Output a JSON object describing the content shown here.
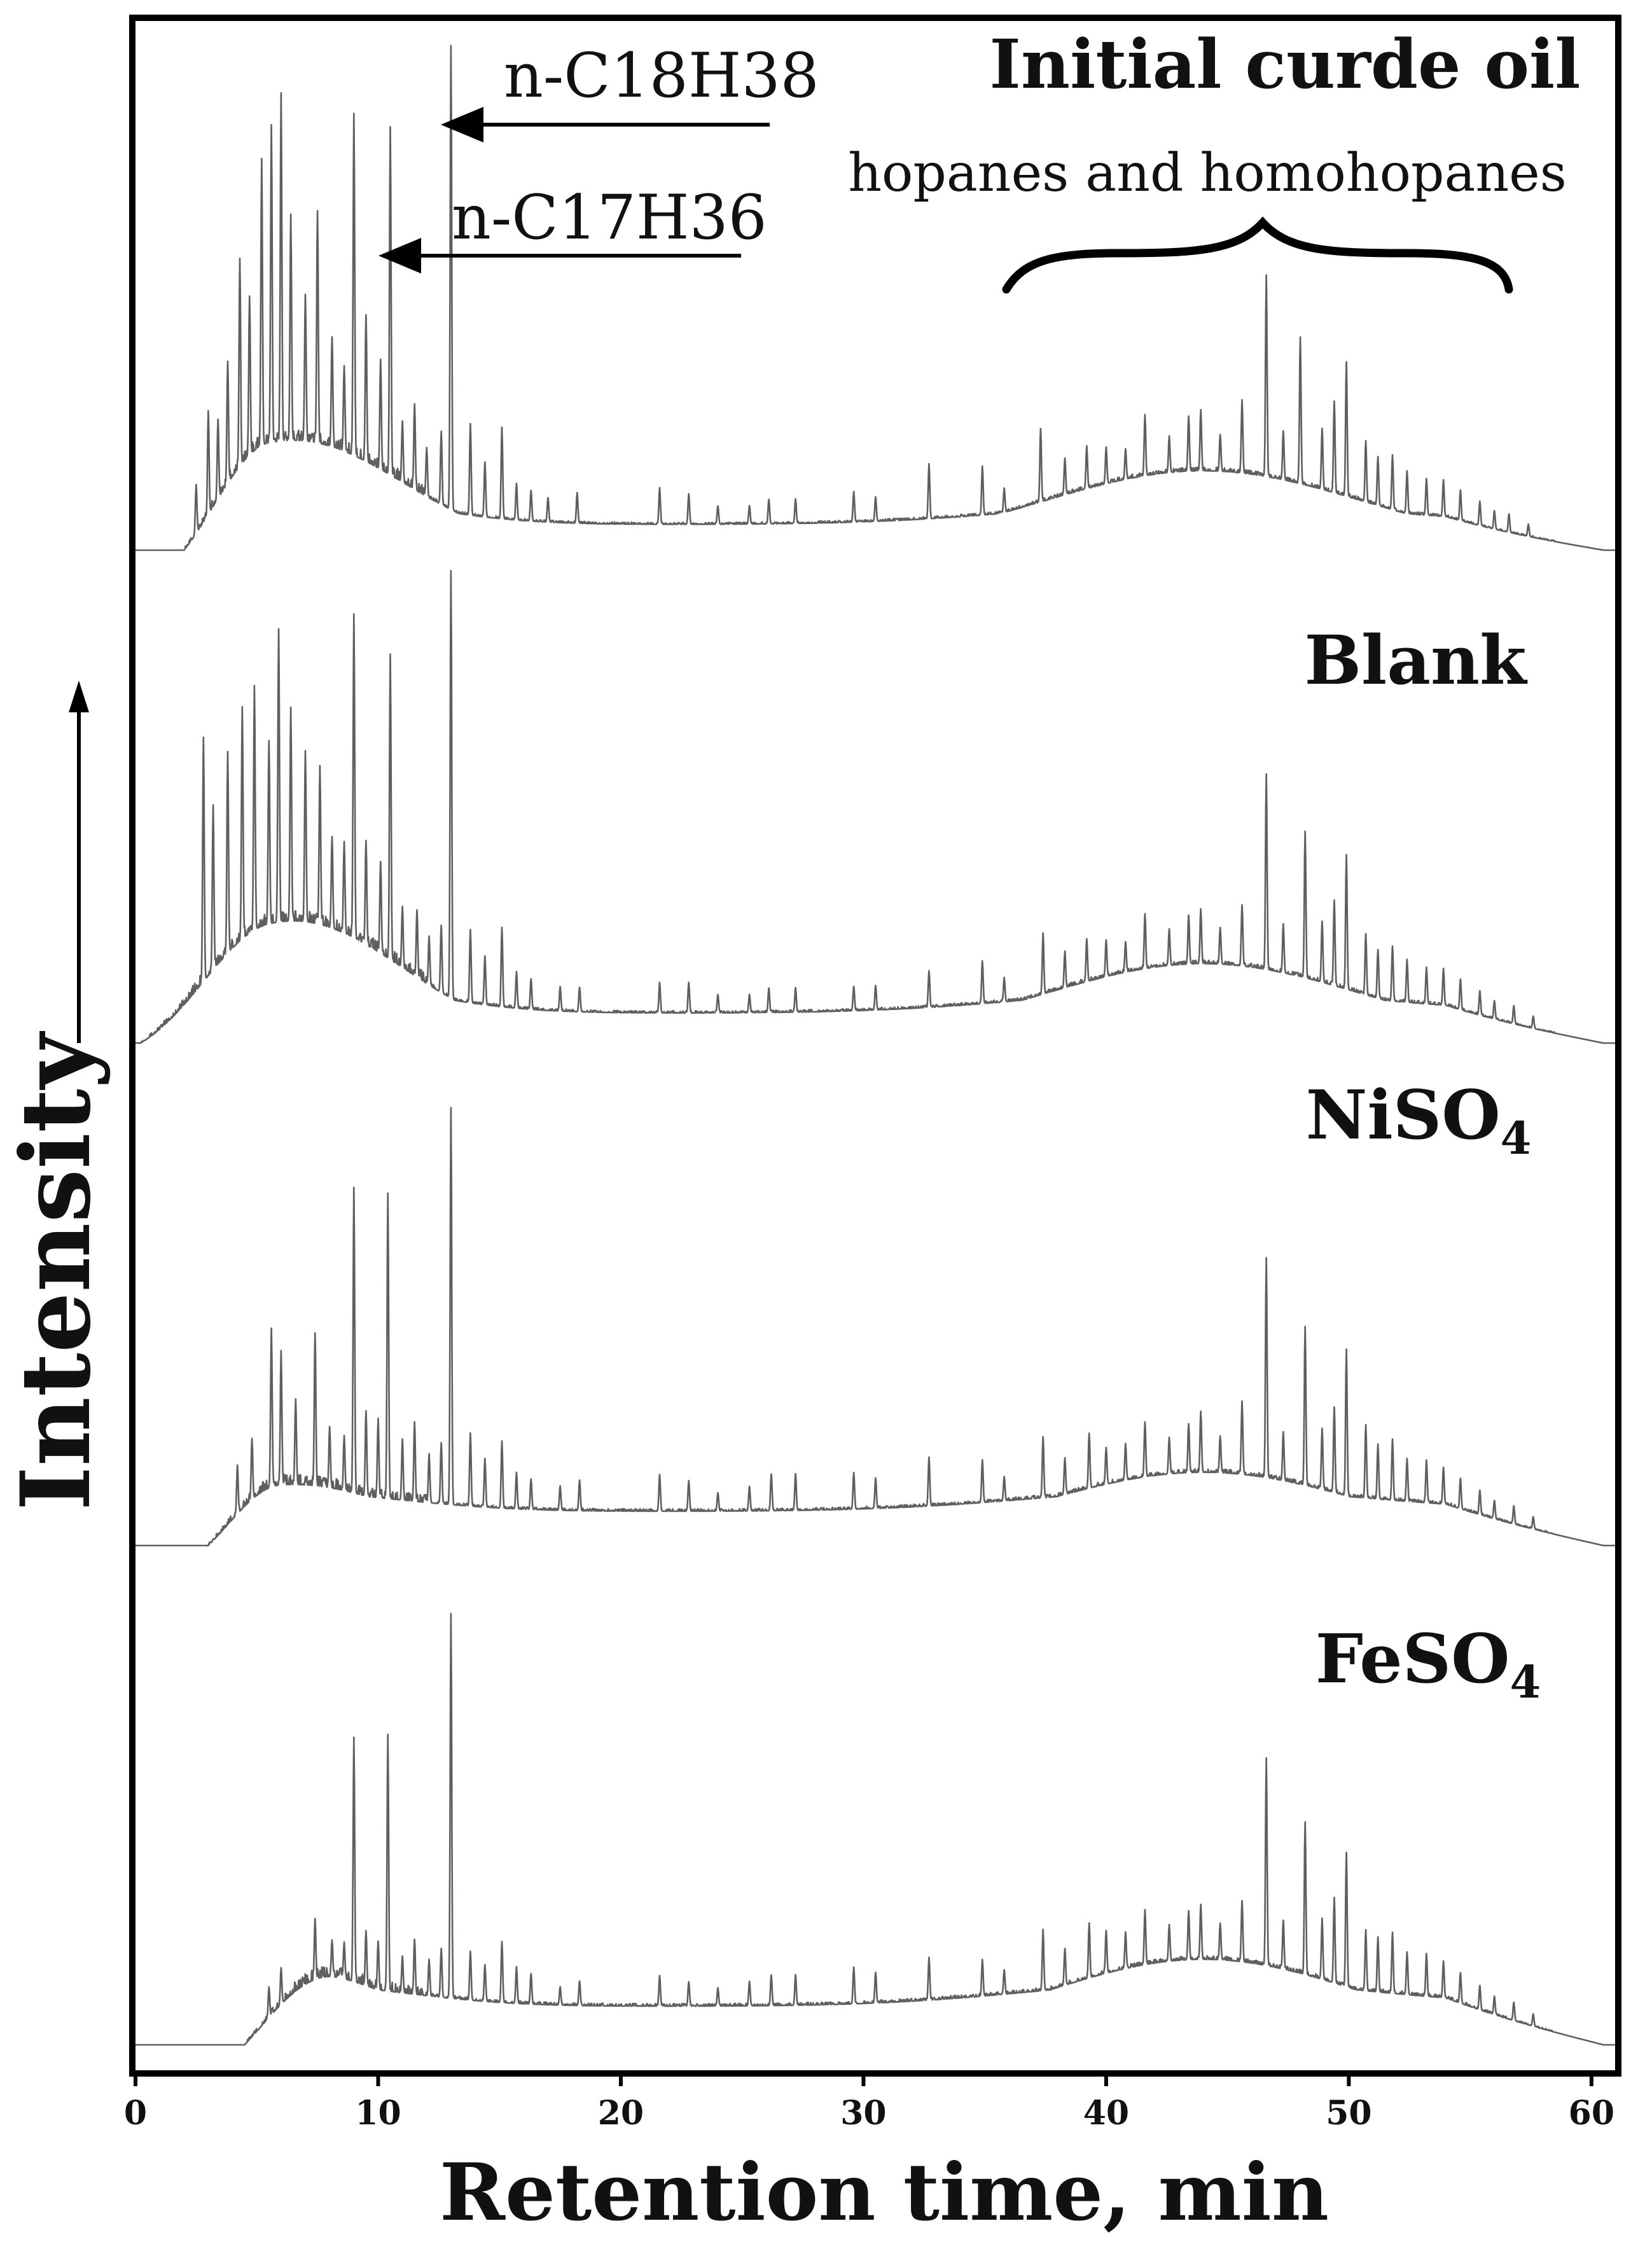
{
  "chart_data": {
    "type": "line",
    "xlabel": "Retention time, min",
    "ylabel": "Intensity",
    "xlim": [
      0,
      61
    ],
    "xticks": [
      0,
      10,
      20,
      30,
      40,
      50,
      60
    ],
    "grid": false,
    "legend": "none",
    "annotations": {
      "c18": "n-C18H38",
      "c17": "n-C17H36",
      "hopanes": "hopanes and homohopanes"
    },
    "series": [
      {
        "name": "Initial curde oil",
        "name_parts": [
          "Initial curde oil",
          ""
        ],
        "start_time": 2.0,
        "hump": {
          "rise_end": 5.5,
          "level_early": 0.18,
          "level_mid": 0.06,
          "level_late": 0.13,
          "late_center": 44
        },
        "peaks": [
          [
            2.5,
            0.08
          ],
          [
            3.0,
            0.17
          ],
          [
            3.4,
            0.13
          ],
          [
            3.8,
            0.2
          ],
          [
            4.3,
            0.34
          ],
          [
            4.7,
            0.26
          ],
          [
            5.2,
            0.47
          ],
          [
            5.6,
            0.52
          ],
          [
            6.0,
            0.57
          ],
          [
            6.4,
            0.37
          ],
          [
            7.0,
            0.24
          ],
          [
            7.5,
            0.38
          ],
          [
            8.1,
            0.18
          ],
          [
            8.6,
            0.14
          ],
          [
            9.0,
            0.56
          ],
          [
            9.5,
            0.24
          ],
          [
            10.1,
            0.18
          ],
          [
            10.5,
            0.57
          ],
          [
            11.0,
            0.1
          ],
          [
            11.5,
            0.14
          ],
          [
            12.0,
            0.08
          ],
          [
            12.6,
            0.12
          ],
          [
            13.0,
            0.76
          ],
          [
            13.8,
            0.15
          ],
          [
            14.4,
            0.09
          ],
          [
            15.1,
            0.15
          ],
          [
            15.7,
            0.06
          ],
          [
            16.3,
            0.05
          ],
          [
            17.0,
            0.04
          ],
          [
            18.2,
            0.05
          ],
          [
            21.6,
            0.06
          ],
          [
            22.8,
            0.05
          ],
          [
            24.0,
            0.03
          ],
          [
            25.3,
            0.03
          ],
          [
            26.1,
            0.04
          ],
          [
            27.2,
            0.04
          ],
          [
            29.6,
            0.05
          ],
          [
            30.5,
            0.04
          ],
          [
            32.7,
            0.09
          ],
          [
            34.9,
            0.08
          ],
          [
            35.8,
            0.04
          ],
          [
            37.3,
            0.12
          ],
          [
            38.3,
            0.06
          ],
          [
            39.2,
            0.07
          ],
          [
            40.0,
            0.06
          ],
          [
            40.8,
            0.05
          ],
          [
            41.6,
            0.1
          ],
          [
            42.6,
            0.06
          ],
          [
            43.4,
            0.09
          ],
          [
            43.9,
            0.1
          ],
          [
            44.7,
            0.06
          ],
          [
            45.6,
            0.12
          ],
          [
            46.6,
            0.33
          ],
          [
            47.3,
            0.08
          ],
          [
            48.0,
            0.24
          ],
          [
            48.9,
            0.1
          ],
          [
            49.4,
            0.15
          ],
          [
            49.9,
            0.22
          ],
          [
            50.7,
            0.1
          ],
          [
            51.2,
            0.08
          ],
          [
            51.8,
            0.09
          ],
          [
            52.4,
            0.07
          ],
          [
            53.2,
            0.06
          ],
          [
            53.9,
            0.06
          ],
          [
            54.6,
            0.05
          ],
          [
            55.4,
            0.04
          ],
          [
            56.0,
            0.03
          ],
          [
            56.6,
            0.03
          ],
          [
            57.4,
            0.02
          ]
        ]
      },
      {
        "name": "Blank",
        "name_parts": [
          "Blank",
          ""
        ],
        "start_time": 0.2,
        "hump": {
          "rise_end": 5.5,
          "level_early": 0.2,
          "level_mid": 0.07,
          "level_late": 0.13,
          "late_center": 44
        },
        "peaks": [
          [
            2.8,
            0.4
          ],
          [
            3.2,
            0.27
          ],
          [
            3.8,
            0.33
          ],
          [
            4.4,
            0.38
          ],
          [
            4.9,
            0.4
          ],
          [
            5.5,
            0.3
          ],
          [
            5.9,
            0.48
          ],
          [
            6.4,
            0.35
          ],
          [
            7.0,
            0.28
          ],
          [
            7.6,
            0.26
          ],
          [
            8.1,
            0.15
          ],
          [
            8.6,
            0.15
          ],
          [
            9.0,
            0.53
          ],
          [
            9.5,
            0.17
          ],
          [
            10.1,
            0.15
          ],
          [
            10.5,
            0.5
          ],
          [
            11.0,
            0.1
          ],
          [
            11.6,
            0.11
          ],
          [
            12.1,
            0.08
          ],
          [
            12.6,
            0.11
          ],
          [
            13.0,
            0.7
          ],
          [
            13.8,
            0.12
          ],
          [
            14.4,
            0.08
          ],
          [
            15.1,
            0.13
          ],
          [
            15.7,
            0.06
          ],
          [
            16.3,
            0.05
          ],
          [
            17.5,
            0.04
          ],
          [
            18.3,
            0.04
          ],
          [
            21.6,
            0.05
          ],
          [
            22.8,
            0.05
          ],
          [
            24.0,
            0.03
          ],
          [
            25.3,
            0.03
          ],
          [
            26.1,
            0.04
          ],
          [
            27.2,
            0.04
          ],
          [
            29.6,
            0.04
          ],
          [
            30.5,
            0.04
          ],
          [
            32.7,
            0.06
          ],
          [
            34.9,
            0.07
          ],
          [
            35.8,
            0.04
          ],
          [
            37.4,
            0.1
          ],
          [
            38.3,
            0.06
          ],
          [
            39.2,
            0.07
          ],
          [
            40.0,
            0.06
          ],
          [
            40.8,
            0.05
          ],
          [
            41.6,
            0.09
          ],
          [
            42.6,
            0.06
          ],
          [
            43.4,
            0.08
          ],
          [
            43.9,
            0.09
          ],
          [
            44.7,
            0.06
          ],
          [
            45.6,
            0.1
          ],
          [
            46.6,
            0.32
          ],
          [
            47.3,
            0.08
          ],
          [
            48.2,
            0.24
          ],
          [
            48.9,
            0.1
          ],
          [
            49.4,
            0.14
          ],
          [
            49.9,
            0.22
          ],
          [
            50.7,
            0.1
          ],
          [
            51.2,
            0.08
          ],
          [
            51.8,
            0.09
          ],
          [
            52.4,
            0.07
          ],
          [
            53.2,
            0.06
          ],
          [
            53.9,
            0.06
          ],
          [
            54.6,
            0.05
          ],
          [
            55.4,
            0.04
          ],
          [
            56.0,
            0.03
          ],
          [
            56.8,
            0.03
          ],
          [
            57.6,
            0.02
          ]
        ]
      },
      {
        "name": "NiSO4",
        "name_parts": [
          "NiSO",
          "4"
        ],
        "start_time": 3.0,
        "hump": {
          "rise_end": 6.0,
          "level_early": 0.1,
          "level_mid": 0.08,
          "level_late": 0.12,
          "late_center": 44
        },
        "peaks": [
          [
            4.2,
            0.08
          ],
          [
            4.8,
            0.1
          ],
          [
            5.6,
            0.26
          ],
          [
            6.0,
            0.22
          ],
          [
            6.6,
            0.14
          ],
          [
            7.4,
            0.25
          ],
          [
            8.0,
            0.1
          ],
          [
            8.6,
            0.09
          ],
          [
            9.0,
            0.5
          ],
          [
            9.5,
            0.14
          ],
          [
            10.0,
            0.13
          ],
          [
            10.4,
            0.5
          ],
          [
            11.0,
            0.1
          ],
          [
            11.5,
            0.13
          ],
          [
            12.1,
            0.08
          ],
          [
            12.6,
            0.1
          ],
          [
            13.0,
            0.65
          ],
          [
            13.8,
            0.12
          ],
          [
            14.4,
            0.08
          ],
          [
            15.1,
            0.11
          ],
          [
            15.7,
            0.06
          ],
          [
            16.3,
            0.05
          ],
          [
            17.5,
            0.04
          ],
          [
            18.3,
            0.05
          ],
          [
            21.6,
            0.06
          ],
          [
            22.8,
            0.05
          ],
          [
            24.0,
            0.03
          ],
          [
            25.3,
            0.04
          ],
          [
            26.2,
            0.06
          ],
          [
            27.2,
            0.06
          ],
          [
            29.6,
            0.06
          ],
          [
            30.5,
            0.05
          ],
          [
            32.7,
            0.08
          ],
          [
            34.9,
            0.07
          ],
          [
            35.8,
            0.04
          ],
          [
            37.4,
            0.1
          ],
          [
            38.3,
            0.06
          ],
          [
            39.3,
            0.09
          ],
          [
            40.0,
            0.06
          ],
          [
            40.8,
            0.06
          ],
          [
            41.6,
            0.09
          ],
          [
            42.6,
            0.06
          ],
          [
            43.4,
            0.08
          ],
          [
            43.9,
            0.1
          ],
          [
            44.7,
            0.06
          ],
          [
            45.6,
            0.12
          ],
          [
            46.6,
            0.36
          ],
          [
            47.3,
            0.08
          ],
          [
            48.2,
            0.26
          ],
          [
            48.9,
            0.1
          ],
          [
            49.4,
            0.14
          ],
          [
            49.9,
            0.24
          ],
          [
            50.7,
            0.12
          ],
          [
            51.2,
            0.09
          ],
          [
            51.8,
            0.1
          ],
          [
            52.4,
            0.07
          ],
          [
            53.2,
            0.07
          ],
          [
            53.9,
            0.06
          ],
          [
            54.6,
            0.05
          ],
          [
            55.4,
            0.04
          ],
          [
            56.0,
            0.03
          ],
          [
            56.8,
            0.03
          ],
          [
            57.6,
            0.02
          ]
        ]
      },
      {
        "name": "FeSO4",
        "name_parts": [
          "FeSO",
          "4"
        ],
        "start_time": 4.5,
        "hump": {
          "rise_end": 8.5,
          "level_early": 0.12,
          "level_mid": 0.09,
          "level_late": 0.14,
          "late_center": 44
        },
        "peaks": [
          [
            5.5,
            0.05
          ],
          [
            6.0,
            0.06
          ],
          [
            7.4,
            0.1
          ],
          [
            8.1,
            0.06
          ],
          [
            8.6,
            0.06
          ],
          [
            9.0,
            0.4
          ],
          [
            9.5,
            0.09
          ],
          [
            10.0,
            0.08
          ],
          [
            10.4,
            0.42
          ],
          [
            11.0,
            0.06
          ],
          [
            11.5,
            0.09
          ],
          [
            12.1,
            0.06
          ],
          [
            12.6,
            0.08
          ],
          [
            13.0,
            0.63
          ],
          [
            13.8,
            0.08
          ],
          [
            14.4,
            0.06
          ],
          [
            15.1,
            0.1
          ],
          [
            15.7,
            0.06
          ],
          [
            16.3,
            0.05
          ],
          [
            17.5,
            0.03
          ],
          [
            18.3,
            0.04
          ],
          [
            21.6,
            0.05
          ],
          [
            22.8,
            0.04
          ],
          [
            24.0,
            0.03
          ],
          [
            25.3,
            0.04
          ],
          [
            26.2,
            0.05
          ],
          [
            27.2,
            0.05
          ],
          [
            29.6,
            0.06
          ],
          [
            30.5,
            0.05
          ],
          [
            32.7,
            0.07
          ],
          [
            34.9,
            0.06
          ],
          [
            35.8,
            0.04
          ],
          [
            37.4,
            0.1
          ],
          [
            38.3,
            0.06
          ],
          [
            39.3,
            0.09
          ],
          [
            40.0,
            0.07
          ],
          [
            40.8,
            0.06
          ],
          [
            41.6,
            0.09
          ],
          [
            42.6,
            0.06
          ],
          [
            43.4,
            0.08
          ],
          [
            43.9,
            0.09
          ],
          [
            44.7,
            0.06
          ],
          [
            45.6,
            0.1
          ],
          [
            46.6,
            0.34
          ],
          [
            47.3,
            0.08
          ],
          [
            48.2,
            0.25
          ],
          [
            48.9,
            0.1
          ],
          [
            49.4,
            0.14
          ],
          [
            49.9,
            0.22
          ],
          [
            50.7,
            0.1
          ],
          [
            51.2,
            0.09
          ],
          [
            51.8,
            0.1
          ],
          [
            52.4,
            0.07
          ],
          [
            53.2,
            0.07
          ],
          [
            53.9,
            0.06
          ],
          [
            54.6,
            0.05
          ],
          [
            55.4,
            0.04
          ],
          [
            56.0,
            0.03
          ],
          [
            56.8,
            0.03
          ],
          [
            57.6,
            0.02
          ]
        ]
      }
    ]
  },
  "colors": {
    "trace": "#5f5f5f",
    "frame": "#000000",
    "text": "#111111",
    "background": "#ffffff"
  }
}
